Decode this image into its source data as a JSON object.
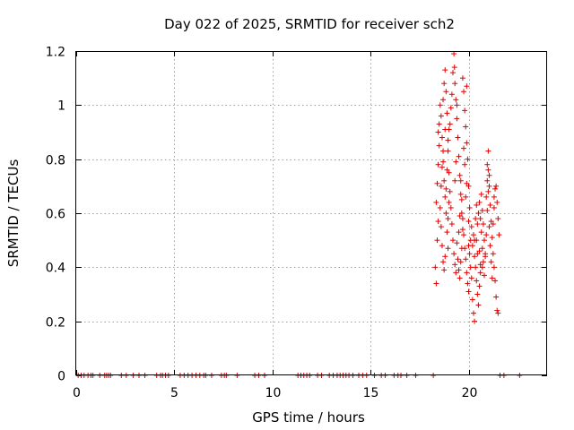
{
  "chart_data": {
    "type": "scatter",
    "title": "Day 022 of 2025, SRMTID for receiver sch2",
    "xlabel": "GPS time / hours",
    "ylabel": "SRMTID / TECUs",
    "xlim": [
      0,
      24
    ],
    "ylim": [
      0,
      1.2
    ],
    "xticks": [
      0,
      5,
      10,
      15,
      20
    ],
    "yticks": [
      0,
      0.2,
      0.4,
      0.6,
      0.8,
      1,
      1.2
    ],
    "ytick_labels": [
      "0",
      "0.2",
      "0.4",
      "0.6",
      "0.8",
      "1",
      "1.2"
    ],
    "grid": true,
    "marker": "+",
    "color": "#e00000",
    "zero_times": [
      0.1,
      0.25,
      0.4,
      0.6,
      0.75,
      0.85,
      1.2,
      1.45,
      1.55,
      1.65,
      1.75,
      2.3,
      2.55,
      2.9,
      3.2,
      3.5,
      4.1,
      4.3,
      4.4,
      4.55,
      4.7,
      5.3,
      5.5,
      5.7,
      5.9,
      6.1,
      6.3,
      6.5,
      6.6,
      6.9,
      7.4,
      7.55,
      7.65,
      8.2,
      9.1,
      9.3,
      9.6,
      11.3,
      11.45,
      11.6,
      11.75,
      11.9,
      12.3,
      12.5,
      12.9,
      13.1,
      13.3,
      13.45,
      13.6,
      13.75,
      13.9,
      14.1,
      14.4,
      14.6,
      14.8,
      15.2,
      15.55,
      15.75,
      16.2,
      16.4,
      16.55,
      16.85,
      17.3,
      18.2,
      21.6,
      21.8,
      22.6
    ],
    "points": [
      [
        18.3,
        0.4
      ],
      [
        18.35,
        0.34
      ],
      [
        18.4,
        0.5
      ],
      [
        18.45,
        0.57
      ],
      [
        18.35,
        0.64
      ],
      [
        18.4,
        0.71
      ],
      [
        18.45,
        0.78
      ],
      [
        18.5,
        0.85
      ],
      [
        18.5,
        0.93
      ],
      [
        18.55,
        1.0
      ],
      [
        18.6,
        0.96
      ],
      [
        18.65,
        0.88
      ],
      [
        18.7,
        0.79
      ],
      [
        18.75,
        0.72
      ],
      [
        18.8,
        0.66
      ],
      [
        18.85,
        0.6
      ],
      [
        18.9,
        0.53
      ],
      [
        18.95,
        0.47
      ],
      [
        18.6,
        0.55
      ],
      [
        18.65,
        0.48
      ],
      [
        18.7,
        0.42
      ],
      [
        18.75,
        0.39
      ],
      [
        18.8,
        0.44
      ],
      [
        18.85,
        0.69
      ],
      [
        18.9,
        0.76
      ],
      [
        18.95,
        0.83
      ],
      [
        19.0,
        0.91
      ],
      [
        18.7,
        1.02
      ],
      [
        18.75,
        1.08
      ],
      [
        18.8,
        1.13
      ],
      [
        18.85,
        1.05
      ],
      [
        18.9,
        0.97
      ],
      [
        18.95,
        0.87
      ],
      [
        19.0,
        0.75
      ],
      [
        19.05,
        0.68
      ],
      [
        19.1,
        0.62
      ],
      [
        19.15,
        0.56
      ],
      [
        19.2,
        0.5
      ],
      [
        19.25,
        0.45
      ],
      [
        19.3,
        0.41
      ],
      [
        19.35,
        0.38
      ],
      [
        19.25,
        1.19
      ],
      [
        19.28,
        1.14
      ],
      [
        19.3,
        1.08
      ],
      [
        19.35,
        1.02
      ],
      [
        19.4,
        0.95
      ],
      [
        19.45,
        0.88
      ],
      [
        19.5,
        0.81
      ],
      [
        19.55,
        0.74
      ],
      [
        19.6,
        0.67
      ],
      [
        19.65,
        0.6
      ],
      [
        19.7,
        0.54
      ],
      [
        19.4,
        0.49
      ],
      [
        19.45,
        0.43
      ],
      [
        19.5,
        0.39
      ],
      [
        19.55,
        0.36
      ],
      [
        19.6,
        0.42
      ],
      [
        19.65,
        0.47
      ],
      [
        19.7,
        1.1
      ],
      [
        19.75,
        1.05
      ],
      [
        19.8,
        0.98
      ],
      [
        19.85,
        0.92
      ],
      [
        19.9,
        0.86
      ],
      [
        19.95,
        0.8
      ],
      [
        19.6,
        0.72
      ],
      [
        19.65,
        0.65
      ],
      [
        19.7,
        0.58
      ],
      [
        19.75,
        0.52
      ],
      [
        19.8,
        0.47
      ],
      [
        19.85,
        0.43
      ],
      [
        19.9,
        0.38
      ],
      [
        19.95,
        0.34
      ],
      [
        20.0,
        0.31
      ],
      [
        20.0,
        0.57
      ],
      [
        20.05,
        0.62
      ],
      [
        20.0,
        0.7
      ],
      [
        20.05,
        0.45
      ],
      [
        20.1,
        0.4
      ],
      [
        20.15,
        0.36
      ],
      [
        20.2,
        0.28
      ],
      [
        20.25,
        0.23
      ],
      [
        20.3,
        0.2
      ],
      [
        20.2,
        0.48
      ],
      [
        20.25,
        0.52
      ],
      [
        20.3,
        0.44
      ],
      [
        20.35,
        0.4
      ],
      [
        20.4,
        0.35
      ],
      [
        20.45,
        0.3
      ],
      [
        20.5,
        0.26
      ],
      [
        20.55,
        0.33
      ],
      [
        20.6,
        0.38
      ],
      [
        20.4,
        0.5
      ],
      [
        20.45,
        0.56
      ],
      [
        20.5,
        0.6
      ],
      [
        20.55,
        0.64
      ],
      [
        20.6,
        0.58
      ],
      [
        20.65,
        0.53
      ],
      [
        20.7,
        0.47
      ],
      [
        20.75,
        0.42
      ],
      [
        20.8,
        0.37
      ],
      [
        20.85,
        0.45
      ],
      [
        20.9,
        0.52
      ],
      [
        20.95,
        0.61
      ],
      [
        21.0,
        0.68
      ],
      [
        21.05,
        0.74
      ],
      [
        21.0,
        0.83
      ],
      [
        20.95,
        0.78
      ],
      [
        21.05,
        0.7
      ],
      [
        21.1,
        0.63
      ],
      [
        21.15,
        0.57
      ],
      [
        21.2,
        0.51
      ],
      [
        21.25,
        0.45
      ],
      [
        21.3,
        0.4
      ],
      [
        21.35,
        0.35
      ],
      [
        21.4,
        0.29
      ],
      [
        21.45,
        0.24
      ],
      [
        21.5,
        0.23
      ],
      [
        21.4,
        0.7
      ],
      [
        21.45,
        0.64
      ],
      [
        21.5,
        0.58
      ],
      [
        21.55,
        0.52
      ],
      [
        21.35,
        0.69
      ],
      [
        21.3,
        0.62
      ],
      [
        21.25,
        0.56
      ],
      [
        20.65,
        0.67
      ],
      [
        20.7,
        0.61
      ],
      [
        20.75,
        0.56
      ],
      [
        20.8,
        0.5
      ],
      [
        20.85,
        0.44
      ],
      [
        18.55,
        0.62
      ],
      [
        18.6,
        0.7
      ],
      [
        18.65,
        0.77
      ],
      [
        18.7,
        0.83
      ],
      [
        19.05,
        0.93
      ],
      [
        19.1,
        0.99
      ],
      [
        19.15,
        1.04
      ],
      [
        19.2,
        1.12
      ],
      [
        19.5,
        0.53
      ],
      [
        19.55,
        0.59
      ],
      [
        19.85,
        0.66
      ],
      [
        19.9,
        0.71
      ],
      [
        20.1,
        0.5
      ],
      [
        20.15,
        0.55
      ],
      [
        20.55,
        0.46
      ],
      [
        20.6,
        0.41
      ],
      [
        21.1,
        0.48
      ],
      [
        21.15,
        0.42
      ],
      [
        21.2,
        0.36
      ],
      [
        18.95,
        0.58
      ],
      [
        19.0,
        0.64
      ],
      [
        19.3,
        0.72
      ],
      [
        19.35,
        0.79
      ],
      [
        19.75,
        0.84
      ],
      [
        19.8,
        0.78
      ],
      [
        20.35,
        0.58
      ],
      [
        20.4,
        0.63
      ],
      [
        20.9,
        0.66
      ],
      [
        20.95,
        0.72
      ],
      [
        21.0,
        0.76
      ],
      [
        18.45,
        0.9
      ],
      [
        18.8,
        0.91
      ],
      [
        19.4,
        1.0
      ],
      [
        19.9,
        1.07
      ],
      [
        20.0,
        0.48
      ],
      [
        20.3,
        0.5
      ],
      [
        20.45,
        0.45
      ],
      [
        20.7,
        0.4
      ],
      [
        21.05,
        0.55
      ],
      [
        21.3,
        0.66
      ]
    ]
  }
}
